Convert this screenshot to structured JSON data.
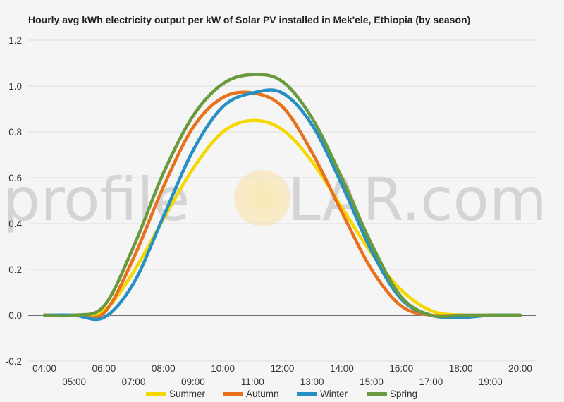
{
  "chart_data": {
    "type": "line",
    "title": "Hourly avg kWh electricity output per kW of Solar PV installed in Mek'ele, Ethiopia (by season)",
    "xlabel": "",
    "ylabel": "",
    "x": [
      "04:00",
      "05:00",
      "06:00",
      "07:00",
      "08:00",
      "09:00",
      "10:00",
      "11:00",
      "12:00",
      "13:00",
      "14:00",
      "15:00",
      "16:00",
      "17:00",
      "18:00",
      "19:00",
      "20:00"
    ],
    "ylim": [
      -0.2,
      1.2
    ],
    "yticks": [
      "-0.2",
      "0.0",
      "0.2",
      "0.4",
      "0.6",
      "0.8",
      "1.0",
      "1.2"
    ],
    "grid": true,
    "legend_position": "bottom",
    "series": [
      {
        "name": "Summer",
        "color": "#f5d800",
        "values": [
          0,
          0,
          0.02,
          0.19,
          0.42,
          0.64,
          0.8,
          0.85,
          0.81,
          0.67,
          0.47,
          0.27,
          0.11,
          0.02,
          0,
          0,
          0
        ]
      },
      {
        "name": "Autumn",
        "color": "#e8711e",
        "values": [
          0,
          0,
          0.01,
          0.25,
          0.56,
          0.82,
          0.95,
          0.97,
          0.91,
          0.71,
          0.45,
          0.2,
          0.04,
          0,
          0,
          0,
          0
        ]
      },
      {
        "name": "Winter",
        "color": "#2790c3",
        "values": [
          0,
          0,
          -0.01,
          0.14,
          0.43,
          0.72,
          0.91,
          0.97,
          0.97,
          0.83,
          0.57,
          0.28,
          0.07,
          0,
          -0.01,
          0,
          0
        ]
      },
      {
        "name": "Spring",
        "color": "#6a9a3e",
        "values": [
          0,
          0,
          0.04,
          0.3,
          0.62,
          0.87,
          1.01,
          1.05,
          1.02,
          0.86,
          0.6,
          0.31,
          0.08,
          0,
          0,
          0,
          0
        ]
      }
    ]
  },
  "watermark": {
    "left": "profile",
    "sun": "S",
    "right": "LAR.com"
  }
}
